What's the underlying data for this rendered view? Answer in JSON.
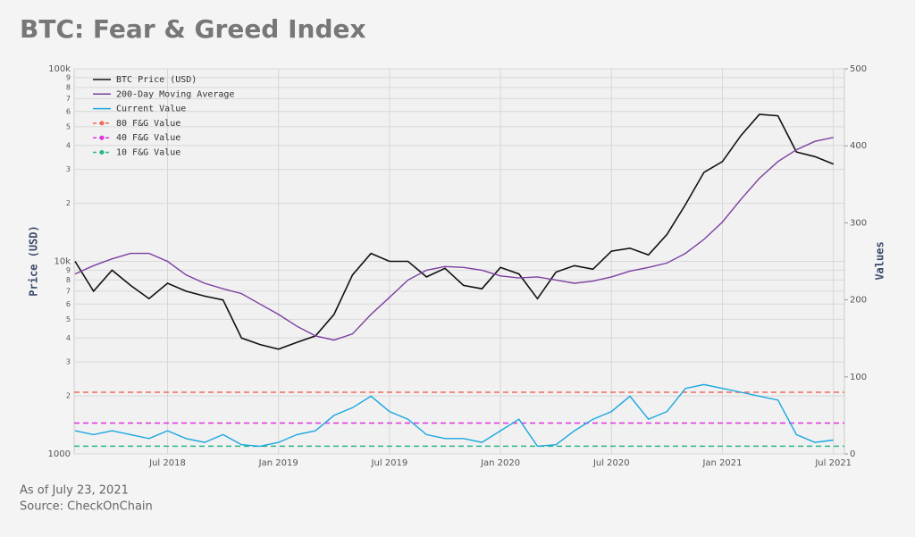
{
  "chart_data": {
    "type": "line",
    "title": "BTC: Fear & Greed Index",
    "ylabel": "Price (USD)",
    "y2label": "Values",
    "footnotes": [
      "As of July 23, 2021",
      "Source: CheckOnChain"
    ],
    "x": [
      "Feb 2018",
      "Mar 2018",
      "Apr 2018",
      "May 2018",
      "Jun 2018",
      "Jul 2018",
      "Aug 2018",
      "Sep 2018",
      "Oct 2018",
      "Nov 2018",
      "Dec 2018",
      "Jan 2019",
      "Feb 2019",
      "Mar 2019",
      "Apr 2019",
      "May 2019",
      "Jun 2019",
      "Jul 2019",
      "Aug 2019",
      "Sep 2019",
      "Oct 2019",
      "Nov 2019",
      "Dec 2019",
      "Jan 2020",
      "Feb 2020",
      "Mar 2020",
      "Apr 2020",
      "May 2020",
      "Jun 2020",
      "Jul 2020",
      "Aug 2020",
      "Sep 2020",
      "Oct 2020",
      "Nov 2020",
      "Dec 2020",
      "Jan 2021",
      "Feb 2021",
      "Mar 2021",
      "Apr 2021",
      "May 2021",
      "Jun 2021",
      "Jul 2021"
    ],
    "series": [
      {
        "name": "BTC Price (USD)",
        "color": "#111111",
        "values": [
          10000,
          7000,
          9000,
          7500,
          6400,
          7700,
          7000,
          6600,
          6300,
          4000,
          3700,
          3500,
          3800,
          4100,
          5300,
          8500,
          11000,
          10000,
          10000,
          8300,
          9200,
          7500,
          7200,
          9300,
          8600,
          6400,
          8800,
          9500,
          9100,
          11300,
          11700,
          10800,
          13800,
          19700,
          29000,
          33000,
          45000,
          58000,
          57000,
          37000,
          35000,
          32000
        ]
      },
      {
        "name": "200-Day Moving Average",
        "color": "#7b3fa0",
        "values": [
          8600,
          9500,
          10300,
          11000,
          11000,
          10000,
          8500,
          7700,
          7200,
          6800,
          6000,
          5300,
          4600,
          4100,
          3900,
          4200,
          5300,
          6500,
          8000,
          9000,
          9400,
          9300,
          9000,
          8400,
          8200,
          8300,
          8000,
          7700,
          7900,
          8300,
          8900,
          9300,
          9800,
          11000,
          13000,
          16000,
          21000,
          27000,
          33000,
          38000,
          42000,
          44000
        ]
      },
      {
        "name": "Current Value",
        "color": "#1aa7e0",
        "axis": "y2",
        "values": [
          30,
          25,
          30,
          25,
          20,
          30,
          20,
          15,
          25,
          12,
          10,
          15,
          25,
          30,
          50,
          60,
          75,
          55,
          45,
          25,
          20,
          20,
          15,
          30,
          45,
          10,
          12,
          30,
          45,
          55,
          75,
          45,
          55,
          85,
          90,
          85,
          80,
          75,
          70,
          25,
          15,
          18
        ]
      }
    ],
    "reference_lines": [
      {
        "name": "80 F&G Value",
        "color": "#f06a5d",
        "value": 80
      },
      {
        "name": "40 F&G Value",
        "color": "#e032e0",
        "value": 40
      },
      {
        "name": "10 F&G Value",
        "color": "#2bb58a",
        "value": 10
      }
    ],
    "log_y": true,
    "ylim": [
      1000,
      100000
    ],
    "yticks": [
      1000,
      {
        "value": 2000,
        "label": "2"
      },
      {
        "value": 3000,
        "label": "3"
      },
      {
        "value": 4000,
        "label": "4"
      },
      {
        "value": 5000,
        "label": "5"
      },
      {
        "value": 6000,
        "label": "6"
      },
      {
        "value": 7000,
        "label": "7"
      },
      {
        "value": 8000,
        "label": "8"
      },
      {
        "value": 9000,
        "label": "9"
      },
      {
        "value": 10000,
        "label": "10k"
      },
      {
        "value": 20000,
        "label": "2"
      },
      {
        "value": 30000,
        "label": "3"
      },
      {
        "value": 40000,
        "label": "4"
      },
      {
        "value": 50000,
        "label": "5"
      },
      {
        "value": 60000,
        "label": "6"
      },
      {
        "value": 70000,
        "label": "7"
      },
      {
        "value": 80000,
        "label": "8"
      },
      {
        "value": 90000,
        "label": "9"
      },
      {
        "value": 100000,
        "label": "100k"
      }
    ],
    "y2lim": [
      0,
      500
    ],
    "y2ticks": [
      0,
      100,
      200,
      300,
      400,
      500
    ],
    "grid": true,
    "legend": "top-left"
  }
}
